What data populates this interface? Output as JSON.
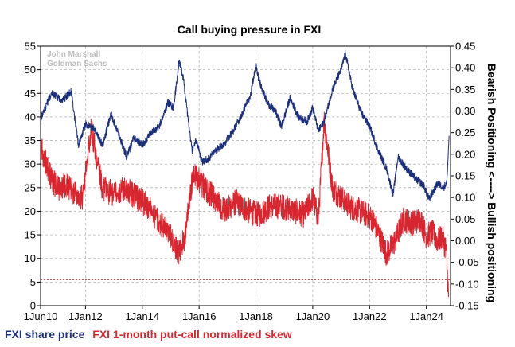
{
  "chart_data": {
    "type": "line",
    "title": "Call buying pressure in FXI",
    "watermark": [
      "John Marshall",
      "Goldman Sachs"
    ],
    "x_ticks": [
      "1Jun10",
      "1Jan12",
      "1Jan14",
      "1Jan16",
      "1Jan18",
      "1Jan20",
      "1Jan22",
      "1Jan24"
    ],
    "x_tick_years": [
      2010.42,
      2012.0,
      2014.0,
      2016.0,
      2018.0,
      2020.0,
      2022.0,
      2024.0
    ],
    "xlim": [
      2010.42,
      2024.85
    ],
    "left_axis": {
      "ylim": [
        0,
        55
      ],
      "ticks": [
        "0",
        "5",
        "10",
        "15",
        "20",
        "25",
        "30",
        "35",
        "40",
        "45",
        "50",
        "55"
      ]
    },
    "right_axis": {
      "label": "Bearish Positioning <----> Bullish positioning",
      "ylim": [
        -0.15,
        0.45
      ],
      "ticks": [
        "-0.15",
        "-0.10",
        "-0.05",
        "0.00",
        "0.05",
        "0.10",
        "0.15",
        "0.20",
        "0.25",
        "0.30",
        "0.35",
        "0.40",
        "0.45"
      ]
    },
    "reference_line": {
      "axis": "right",
      "value": -0.09,
      "color": "#d7262f",
      "style": "dotted"
    },
    "series": [
      {
        "name": "FXI share price",
        "axis": "left",
        "color": "#1c2f7a",
        "x": [
          2010.42,
          2010.8,
          2011.2,
          2011.5,
          2011.75,
          2012.0,
          2012.3,
          2012.6,
          2012.9,
          2013.1,
          2013.45,
          2013.7,
          2014.0,
          2014.3,
          2014.6,
          2014.9,
          2015.1,
          2015.3,
          2015.45,
          2015.6,
          2015.75,
          2015.9,
          2016.1,
          2016.3,
          2016.6,
          2016.9,
          2017.2,
          2017.5,
          2017.8,
          2018.0,
          2018.1,
          2018.4,
          2018.7,
          2018.9,
          2019.2,
          2019.5,
          2019.8,
          2020.0,
          2020.2,
          2020.4,
          2020.7,
          2021.0,
          2021.15,
          2021.4,
          2021.7,
          2022.0,
          2022.3,
          2022.6,
          2022.83,
          2023.0,
          2023.3,
          2023.6,
          2023.9,
          2024.1,
          2024.4,
          2024.6,
          2024.72,
          2024.8
        ],
        "values": [
          39.5,
          45.0,
          43.5,
          45.5,
          34.0,
          38.5,
          37.5,
          34.0,
          40.5,
          37.5,
          31.5,
          35.5,
          34.0,
          36.5,
          38.0,
          43.0,
          42.0,
          52.0,
          48.0,
          40.0,
          33.0,
          35.0,
          30.5,
          31.0,
          33.0,
          34.5,
          37.0,
          40.5,
          44.5,
          51.0,
          48.0,
          43.0,
          41.0,
          38.0,
          44.0,
          40.0,
          39.0,
          42.0,
          37.0,
          39.0,
          46.0,
          50.0,
          53.5,
          46.0,
          41.0,
          38.0,
          33.0,
          29.0,
          23.5,
          31.5,
          29.0,
          27.0,
          25.5,
          22.5,
          26.0,
          25.0,
          26.0,
          36.0
        ]
      },
      {
        "name": "FXI 1-month put-call normalized skew",
        "axis": "right",
        "color": "#d7262f",
        "x": [
          2010.42,
          2010.7,
          2011.0,
          2011.3,
          2011.6,
          2011.9,
          2012.2,
          2012.6,
          2013.0,
          2013.4,
          2013.8,
          2014.2,
          2014.6,
          2014.9,
          2015.1,
          2015.3,
          2015.5,
          2015.8,
          2016.1,
          2016.5,
          2016.9,
          2017.3,
          2017.7,
          2018.1,
          2018.5,
          2018.9,
          2019.3,
          2019.7,
          2020.0,
          2020.2,
          2020.4,
          2020.7,
          2021.0,
          2021.3,
          2021.6,
          2021.9,
          2022.1,
          2022.3,
          2022.6,
          2022.9,
          2023.2,
          2023.5,
          2023.8,
          2024.0,
          2024.2,
          2024.4,
          2024.55,
          2024.7,
          2024.78
        ],
        "values": [
          0.22,
          0.16,
          0.12,
          0.13,
          0.11,
          0.1,
          0.26,
          0.12,
          0.11,
          0.12,
          0.1,
          0.08,
          0.04,
          0.02,
          0.0,
          -0.03,
          0.01,
          0.16,
          0.13,
          0.1,
          0.07,
          0.09,
          0.07,
          0.06,
          0.08,
          0.08,
          0.07,
          0.06,
          0.1,
          0.05,
          0.28,
          0.12,
          0.1,
          0.08,
          0.07,
          0.06,
          0.05,
          0.02,
          -0.03,
          0.0,
          0.05,
          0.04,
          0.05,
          0.01,
          0.02,
          0.0,
          0.01,
          -0.02,
          -0.13
        ]
      }
    ],
    "legend": [
      "FXI share price",
      "FXI 1-month put-call normalized skew"
    ]
  }
}
